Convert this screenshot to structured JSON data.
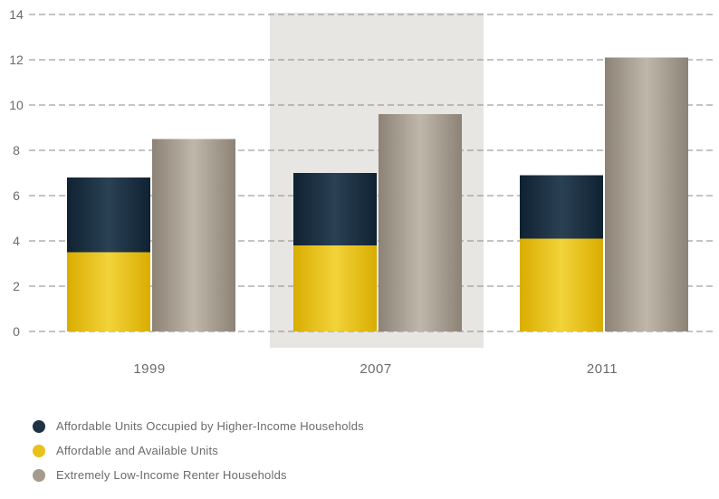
{
  "chart_data": {
    "type": "bar",
    "stacked_group": "units",
    "categories": [
      "1999",
      "2007",
      "2011"
    ],
    "highlighted_category": "2007",
    "ylim": [
      0,
      14
    ],
    "yticks": [
      "0",
      "2",
      "4",
      "6",
      "8",
      "10",
      "12",
      "14"
    ],
    "series": [
      {
        "name": "Affordable and Available Units",
        "stack": "units",
        "color": "#e8c21a",
        "values": [
          3.5,
          3.8,
          4.1
        ]
      },
      {
        "name": "Affordable Units Occupied by Higher-Income Households",
        "stack": "units",
        "color": "#1e3344",
        "values": [
          3.3,
          3.2,
          2.8
        ]
      },
      {
        "name": "Extremely Low-Income Renter Households",
        "stack": "renters",
        "color": "#a59a8d",
        "values": [
          8.5,
          9.6,
          12.1
        ]
      }
    ],
    "grid": true,
    "legend_position": "bottom-left"
  },
  "legend": [
    {
      "label": "Affordable Units Occupied by Higher-Income Households",
      "color": "#1e3344"
    },
    {
      "label": "Affordable and Available Units",
      "color": "#e8c21a"
    },
    {
      "label": "Extremely Low-Income Renter Households",
      "color": "#a59a8d"
    }
  ]
}
